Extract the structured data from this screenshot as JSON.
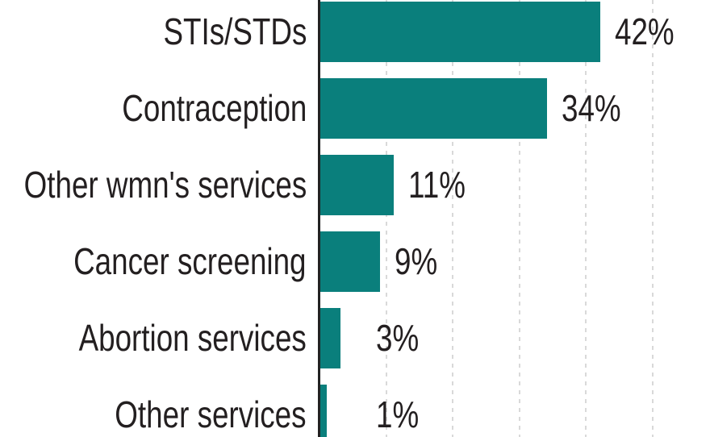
{
  "chart_data": {
    "type": "bar",
    "orientation": "horizontal",
    "title": "",
    "xlabel": "",
    "ylabel": "",
    "categories": [
      "STIs/STDs",
      "Contraception",
      "Other wmn's services",
      "Cancer screening",
      "Abortion services",
      "Other services"
    ],
    "values": [
      42,
      34,
      11,
      9,
      3,
      1
    ],
    "value_labels": [
      "42%",
      "34%",
      "11%",
      "9%",
      "3%",
      "1%"
    ],
    "unit": "%",
    "xlim": [
      0,
      58.7
    ],
    "gridline_values": [
      10,
      20,
      30,
      40,
      50
    ],
    "gridline_style": "dashed-vertical",
    "legend": "none",
    "colors": {
      "bar": "#0a7f7c",
      "axis": "#222222",
      "gridline": "#d9d9d9",
      "text": "#231f20",
      "background": "#ffffff"
    }
  }
}
